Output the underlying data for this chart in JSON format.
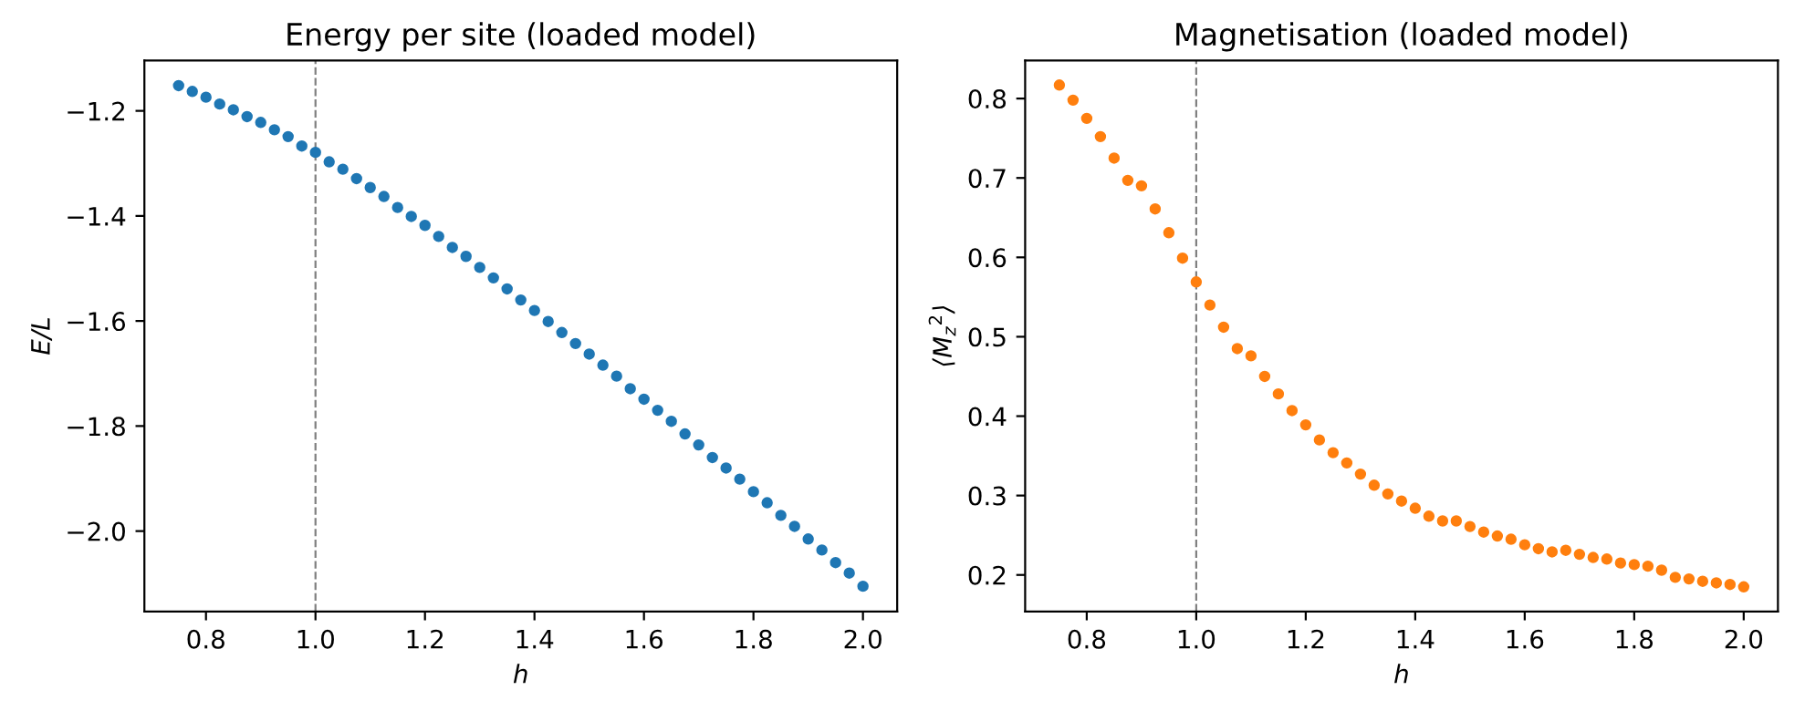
{
  "chart_data": [
    {
      "type": "scatter",
      "title": "Energy per site (loaded model)",
      "xlabel": "h",
      "ylabel": "E/L",
      "x": [
        0.75,
        0.775,
        0.8,
        0.825,
        0.85,
        0.875,
        0.9,
        0.925,
        0.95,
        0.975,
        1.0,
        1.025,
        1.05,
        1.075,
        1.1,
        1.125,
        1.15,
        1.175,
        1.2,
        1.225,
        1.25,
        1.275,
        1.3,
        1.325,
        1.35,
        1.375,
        1.4,
        1.425,
        1.45,
        1.475,
        1.5,
        1.525,
        1.55,
        1.575,
        1.6,
        1.625,
        1.65,
        1.675,
        1.7,
        1.725,
        1.75,
        1.775,
        1.8,
        1.825,
        1.85,
        1.875,
        1.9,
        1.925,
        1.95,
        1.975,
        2.0
      ],
      "series": [
        {
          "color": "#1f77b4",
          "values": [
            -1.152,
            -1.163,
            -1.174,
            -1.187,
            -1.198,
            -1.211,
            -1.222,
            -1.236,
            -1.249,
            -1.267,
            -1.279,
            -1.297,
            -1.311,
            -1.329,
            -1.346,
            -1.363,
            -1.384,
            -1.401,
            -1.418,
            -1.439,
            -1.46,
            -1.477,
            -1.498,
            -1.518,
            -1.539,
            -1.56,
            -1.58,
            -1.601,
            -1.622,
            -1.643,
            -1.663,
            -1.684,
            -1.705,
            -1.729,
            -1.749,
            -1.77,
            -1.791,
            -1.815,
            -1.836,
            -1.86,
            -1.88,
            -1.901,
            -1.925,
            -1.946,
            -1.97,
            -1.991,
            -2.015,
            -2.036,
            -2.06,
            -2.08,
            -2.105
          ]
        }
      ],
      "marker": "circle",
      "xlim": [
        0.6875,
        2.0625
      ],
      "xticks": [
        {
          "value": 0.8,
          "label": "0.8"
        },
        {
          "value": 1.0,
          "label": "1.0"
        },
        {
          "value": 1.2,
          "label": "1.2"
        },
        {
          "value": 1.4,
          "label": "1.4"
        },
        {
          "value": 1.6,
          "label": "1.6"
        },
        {
          "value": 1.8,
          "label": "1.8"
        },
        {
          "value": 2.0,
          "label": "2.0"
        }
      ],
      "ylim": [
        -2.153,
        -1.104
      ],
      "yticks": [
        {
          "value": -2.0,
          "label": "−2.0"
        },
        {
          "value": -1.8,
          "label": "−1.8"
        },
        {
          "value": -1.6,
          "label": "−1.6"
        },
        {
          "value": -1.4,
          "label": "−1.4"
        },
        {
          "value": -1.2,
          "label": "−1.2"
        }
      ],
      "ref_lines": [
        {
          "axis": "x",
          "value": 1.0,
          "color": "#808080",
          "line_style": "dashed"
        }
      ],
      "grid": false,
      "legend": false
    },
    {
      "type": "scatter",
      "title": "Magnetisation (loaded model)",
      "xlabel": "h",
      "ylabel": "⟨M$_{z}$$^{2}$⟩",
      "x": [
        0.75,
        0.775,
        0.8,
        0.825,
        0.85,
        0.875,
        0.9,
        0.925,
        0.95,
        0.975,
        1.0,
        1.025,
        1.05,
        1.075,
        1.1,
        1.125,
        1.15,
        1.175,
        1.2,
        1.225,
        1.25,
        1.275,
        1.3,
        1.325,
        1.35,
        1.375,
        1.4,
        1.425,
        1.45,
        1.475,
        1.5,
        1.525,
        1.55,
        1.575,
        1.6,
        1.625,
        1.65,
        1.675,
        1.7,
        1.725,
        1.75,
        1.775,
        1.8,
        1.825,
        1.85,
        1.875,
        1.9,
        1.925,
        1.95,
        1.975,
        2.0
      ],
      "series": [
        {
          "color": "#ff7f0e",
          "values": [
            0.817,
            0.798,
            0.775,
            0.752,
            0.725,
            0.697,
            0.69,
            0.661,
            0.631,
            0.599,
            0.569,
            0.54,
            0.512,
            0.485,
            0.476,
            0.45,
            0.428,
            0.407,
            0.389,
            0.37,
            0.354,
            0.341,
            0.327,
            0.313,
            0.302,
            0.293,
            0.284,
            0.274,
            0.268,
            0.268,
            0.261,
            0.254,
            0.249,
            0.245,
            0.238,
            0.233,
            0.229,
            0.231,
            0.226,
            0.222,
            0.22,
            0.215,
            0.213,
            0.211,
            0.206,
            0.197,
            0.195,
            0.192,
            0.19,
            0.188,
            0.185
          ]
        }
      ],
      "marker": "circle",
      "xlim": [
        0.6875,
        2.0625
      ],
      "xticks": [
        {
          "value": 0.8,
          "label": "0.8"
        },
        {
          "value": 1.0,
          "label": "1.0"
        },
        {
          "value": 1.2,
          "label": "1.2"
        },
        {
          "value": 1.4,
          "label": "1.4"
        },
        {
          "value": 1.6,
          "label": "1.6"
        },
        {
          "value": 1.8,
          "label": "1.8"
        },
        {
          "value": 2.0,
          "label": "2.0"
        }
      ],
      "ylim": [
        0.154,
        0.848
      ],
      "yticks": [
        0.2,
        0.3,
        0.4,
        0.5,
        0.6,
        0.7,
        0.8
      ],
      "ref_lines": [
        {
          "axis": "x",
          "value": 1.0,
          "color": "#808080",
          "line_style": "dashed"
        }
      ],
      "grid": false,
      "legend": false
    }
  ]
}
